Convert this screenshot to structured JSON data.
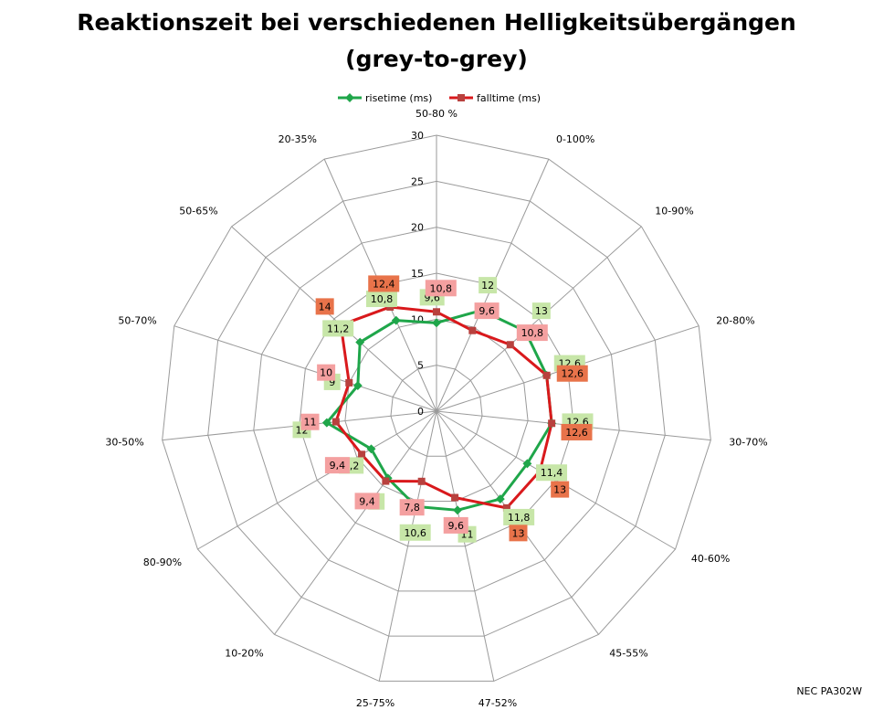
{
  "title_line1": "Reaktionszeit bei verschiedenen Helligkeitsübergängen",
  "title_line2": "(grey-to-grey)",
  "footer": "NEC PA302W",
  "colors": {
    "rise": "#1fa64a",
    "fall": "#d9191c",
    "rise_label_bg": "#c7e6a8",
    "fall_label_bg": "#f4a0a0",
    "fall_label_bg_strong": "#e8734a",
    "grid": "#9a9a9a"
  },
  "chart_data": {
    "type": "radar",
    "categories": [
      "50-80 %",
      "0-100%",
      "10-90%",
      "20-80%",
      "30-70%",
      "40-60%",
      "45-55%",
      "47-52%",
      "25-75%",
      "10-20%",
      "80-90%",
      "30-50%",
      "50-70%",
      "50-65%",
      "20-35%"
    ],
    "series": [
      {
        "name": "risetime (ms)",
        "values": [
          9.6,
          12,
          13,
          12.6,
          12.6,
          11.4,
          11.8,
          11,
          10.6,
          9,
          8.2,
          12,
          9,
          11.2,
          10.8
        ]
      },
      {
        "name": "falltime (ms)",
        "values": [
          10.8,
          9.6,
          10.8,
          12.6,
          12.6,
          13,
          13,
          9.6,
          7.8,
          9.4,
          9.4,
          11,
          10,
          14,
          12.4
        ]
      }
    ],
    "rlim": [
      0,
      30
    ],
    "rticks": [
      0,
      5,
      10,
      15,
      20,
      25,
      30
    ],
    "legend_position": "top",
    "grid": true
  }
}
